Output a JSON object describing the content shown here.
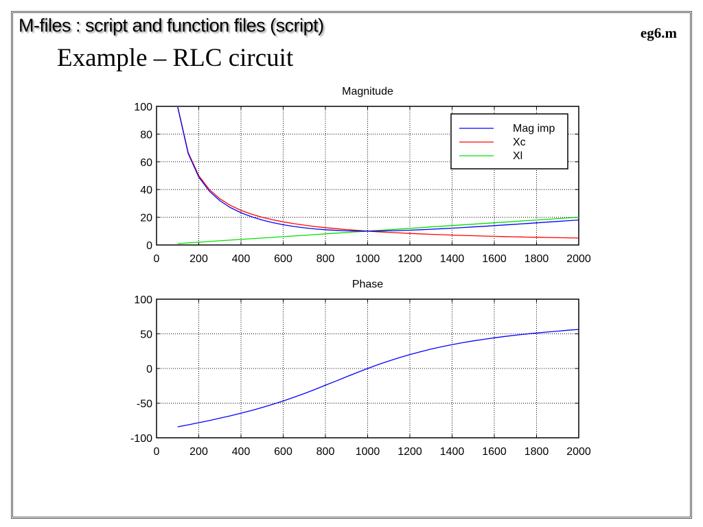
{
  "header": "M-files : script and function files (script)",
  "file_name": "eg6.m",
  "title": "Example – RLC circuit",
  "chart_data": [
    {
      "type": "line",
      "title": "Magnitude",
      "xlim": [
        0,
        2000
      ],
      "ylim": [
        0,
        100
      ],
      "xticks": [
        "0",
        "200",
        "400",
        "600",
        "800",
        "1000",
        "1200",
        "1400",
        "1600",
        "1800",
        "2000"
      ],
      "yticks": [
        "0",
        "20",
        "40",
        "60",
        "80",
        "100"
      ],
      "grid": true,
      "legend_position": "top-right",
      "x": [
        100,
        150,
        200,
        250,
        300,
        350,
        400,
        450,
        500,
        550,
        600,
        650,
        700,
        750,
        800,
        850,
        900,
        950,
        1000,
        1050,
        1100,
        1150,
        1200,
        1250,
        1300,
        1350,
        1400,
        1450,
        1500,
        1550,
        1600,
        1650,
        1700,
        1750,
        1800,
        1850,
        1900,
        1950,
        2000
      ],
      "series": [
        {
          "name": "Mag imp",
          "color": "#0000ff",
          "values": [
            99.5,
            65.93,
            49.03,
            38.81,
            31.94,
            26.99,
            23.26,
            20.35,
            18.03,
            16.15,
            14.62,
            13.37,
            12.37,
            11.58,
            10.97,
            10.52,
            10.22,
            10.05,
            10,
            10.05,
            10.18,
            10.38,
            10.65,
            10.97,
            11.32,
            11.71,
            12.13,
            12.56,
            13.02,
            13.49,
            13.97,
            14.46,
            14.95,
            15.46,
            15.96,
            16.47,
            16.99,
            17.51,
            18.03
          ]
        },
        {
          "name": "Xc",
          "color": "#ff0000",
          "values": [
            100,
            66.67,
            50,
            40,
            33.33,
            28.57,
            25,
            22.22,
            20,
            18.18,
            16.67,
            15.38,
            14.29,
            13.33,
            12.5,
            11.76,
            11.11,
            10.53,
            10,
            9.52,
            9.09,
            8.7,
            8.33,
            8,
            7.69,
            7.41,
            7.14,
            6.9,
            6.67,
            6.45,
            6.25,
            6.06,
            5.88,
            5.71,
            5.56,
            5.41,
            5.26,
            5.13,
            5
          ]
        },
        {
          "name": "Xl",
          "color": "#00e000",
          "values": [
            1,
            1.5,
            2,
            2.5,
            3,
            3.5,
            4,
            4.5,
            5,
            5.5,
            6,
            6.5,
            7,
            7.5,
            8,
            8.5,
            9,
            9.5,
            10,
            10.5,
            11,
            11.5,
            12,
            12.5,
            13,
            13.5,
            14,
            14.5,
            15,
            15.5,
            16,
            16.5,
            17,
            17.5,
            18,
            18.5,
            19,
            19.5,
            20
          ]
        }
      ]
    },
    {
      "type": "line",
      "title": "Phase",
      "xlim": [
        0,
        2000
      ],
      "ylim": [
        -100,
        100
      ],
      "xticks": [
        "0",
        "200",
        "400",
        "600",
        "800",
        "1000",
        "1200",
        "1400",
        "1600",
        "1800",
        "2000"
      ],
      "yticks": [
        "-100",
        "-50",
        "0",
        "50",
        "100"
      ],
      "grid": true,
      "x": [
        100,
        150,
        200,
        250,
        300,
        350,
        400,
        450,
        500,
        550,
        600,
        650,
        700,
        750,
        800,
        850,
        900,
        950,
        1000,
        1050,
        1100,
        1150,
        1200,
        1250,
        1300,
        1350,
        1400,
        1450,
        1500,
        1550,
        1600,
        1650,
        1700,
        1750,
        1800,
        1850,
        1900,
        1950,
        2000
      ],
      "series": [
        {
          "name": "Phase",
          "color": "#0000ff",
          "values": [
            -84.2,
            -81.3,
            -78.2,
            -75.1,
            -71.7,
            -68.3,
            -64.5,
            -60.6,
            -56.3,
            -51.7,
            -46.9,
            -41.6,
            -36.1,
            -30.3,
            -24.2,
            -18.1,
            -11.9,
            -5.9,
            0,
            5.6,
            10.8,
            15.6,
            20.1,
            24.2,
            28.0,
            31.3,
            34.4,
            37.2,
            39.8,
            42.1,
            44.3,
            46.2,
            48.0,
            49.7,
            51.2,
            52.6,
            53.9,
            55.2,
            56.3
          ]
        }
      ]
    }
  ]
}
